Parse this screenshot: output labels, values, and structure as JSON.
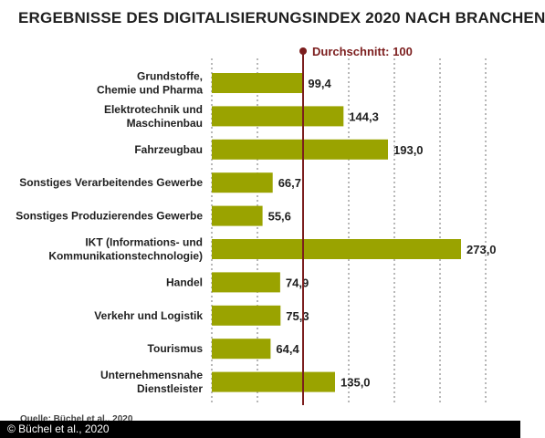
{
  "chart_data": {
    "type": "bar",
    "orientation": "horizontal",
    "title": "ERGEBNISSE DES DIGITALISIERUNGSINDEX 2020 NACH BRANCHEN",
    "categories": [
      [
        "Grundstoffe,",
        "Chemie und Pharma"
      ],
      [
        "Elektrotechnik und",
        "Maschinenbau"
      ],
      [
        "Fahrzeugbau"
      ],
      [
        "Sonstiges Verarbeitendes Gewerbe"
      ],
      [
        "Sonstiges Produzierendes Gewerbe"
      ],
      [
        "IKT (Informations- und",
        "Kommunikationstechnologie)"
      ],
      [
        "Handel"
      ],
      [
        "Verkehr und Logistik"
      ],
      [
        "Tourismus"
      ],
      [
        "Unternehmensnahe",
        "Dienstleister"
      ]
    ],
    "values": [
      99.4,
      144.3,
      193.0,
      66.7,
      55.6,
      273.0,
      74.9,
      75.3,
      64.4,
      135.0
    ],
    "value_labels": [
      "99,4",
      "144,3",
      "193,0",
      "66,7",
      "55,6",
      "273,0",
      "74,9",
      "75,3",
      "64,4",
      "135,0"
    ],
    "reference_line": {
      "value": 100,
      "label": "Durchschnitt: 100"
    },
    "xlim": [
      0,
      300
    ],
    "grid": true,
    "colors": {
      "bar": "#9aa300",
      "reference": "#7b1d1d",
      "grid": "#888888"
    }
  },
  "footer": {
    "source_fragment": "Quelle: Büchel et al., 2020",
    "credit": "© Büchel et al., 2020"
  }
}
